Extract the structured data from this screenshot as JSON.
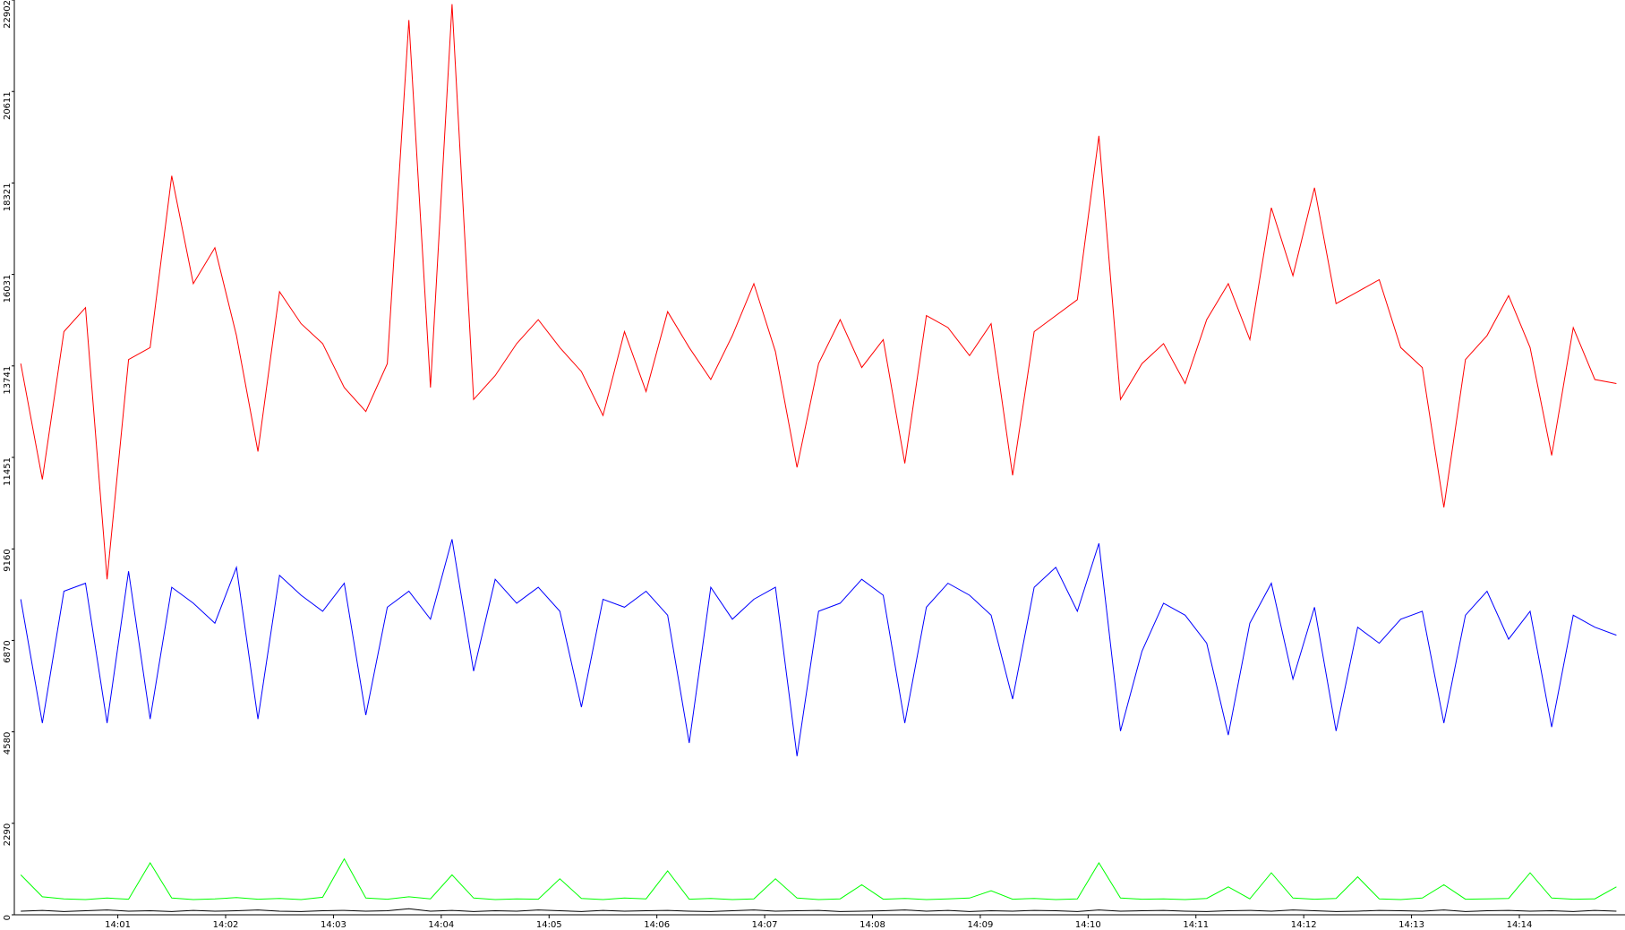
{
  "chart_data": {
    "type": "line",
    "x": [
      0.1,
      0.3,
      0.5,
      0.7,
      0.9,
      1.1,
      1.3,
      1.5,
      1.7,
      1.9,
      2.1,
      2.3,
      2.5,
      2.7,
      2.9,
      3.1,
      3.3,
      3.5,
      3.7,
      3.9,
      4.1,
      4.3,
      4.5,
      4.7,
      4.9,
      5.1,
      5.3,
      5.5,
      5.7,
      5.9,
      6.1,
      6.3,
      6.5,
      6.7,
      6.9,
      7.1,
      7.3,
      7.5,
      7.7,
      7.9,
      8.1,
      8.3,
      8.5,
      8.7,
      8.9,
      9.1,
      9.3,
      9.5,
      9.7,
      9.9,
      10.1,
      10.3,
      10.5,
      10.7,
      10.9,
      11.1,
      11.3,
      11.5,
      11.7,
      11.9,
      12.1,
      12.3,
      12.5,
      12.7,
      12.9,
      13.1,
      13.3,
      13.5,
      13.7,
      13.9,
      14.1,
      14.3,
      14.5,
      14.7,
      14.9
    ],
    "series": [
      {
        "color": "#ff0000",
        "values": [
          13800,
          10900,
          14600,
          15200,
          8400,
          13900,
          14200,
          18500,
          15800,
          16700,
          14500,
          11600,
          15600,
          14800,
          14300,
          13200,
          12600,
          13800,
          22400,
          13200,
          22800,
          12900,
          13500,
          14300,
          14900,
          14200,
          13600,
          12500,
          14600,
          13100,
          15100,
          14200,
          13400,
          14500,
          15800,
          14100,
          11200,
          13800,
          14900,
          13700,
          14400,
          11300,
          15000,
          14700,
          14000,
          14800,
          11000,
          14600,
          15000,
          15400,
          19500,
          12900,
          13800,
          14300,
          13300,
          14900,
          15800,
          14400,
          17700,
          16000,
          18200,
          15300,
          15600,
          15900,
          14200,
          13700,
          10200,
          13900,
          14500,
          15500,
          14200,
          11500,
          14700,
          13400,
          13300
        ]
      },
      {
        "color": "#0000ff",
        "values": [
          7900,
          4800,
          8100,
          8300,
          4800,
          8600,
          4900,
          8200,
          7800,
          7300,
          8700,
          4900,
          8500,
          8000,
          7600,
          8300,
          5000,
          7700,
          8100,
          7400,
          9400,
          6100,
          8400,
          7800,
          8200,
          7600,
          5200,
          7900,
          7700,
          8100,
          7500,
          4300,
          8200,
          7400,
          7900,
          8200,
          3970,
          7600,
          7800,
          8400,
          8000,
          4800,
          7700,
          8300,
          8000,
          7500,
          5400,
          8200,
          8700,
          7600,
          9300,
          4600,
          6600,
          7800,
          7500,
          6800,
          4500,
          7300,
          8300,
          5900,
          7700,
          4600,
          7200,
          6800,
          7400,
          7600,
          4800,
          7500,
          8100,
          6900,
          7600,
          4700,
          7500,
          7200,
          7000
        ]
      },
      {
        "color": "#00ff00",
        "values": [
          1000,
          450,
          400,
          380,
          420,
          390,
          1300,
          420,
          380,
          400,
          430,
          390,
          410,
          380,
          440,
          1400,
          420,
          390,
          450,
          400,
          1000,
          420,
          380,
          400,
          390,
          900,
          410,
          380,
          420,
          400,
          1100,
          390,
          410,
          380,
          400,
          900,
          420,
          380,
          400,
          750,
          390,
          410,
          380,
          400,
          420,
          600,
          390,
          410,
          380,
          400,
          1300,
          420,
          390,
          400,
          380,
          410,
          700,
          400,
          1050,
          420,
          390,
          410,
          950,
          400,
          380,
          420,
          750,
          390,
          400,
          410,
          1050,
          420,
          390,
          400,
          700
        ]
      },
      {
        "color": "#000000",
        "values": [
          90,
          110,
          80,
          100,
          120,
          90,
          100,
          80,
          110,
          90,
          100,
          120,
          90,
          80,
          100,
          110,
          90,
          100,
          150,
          90,
          110,
          80,
          100,
          90,
          120,
          100,
          80,
          110,
          90,
          100,
          110,
          90,
          80,
          100,
          120,
          90,
          100,
          110,
          80,
          90,
          100,
          120,
          90,
          110,
          80,
          100,
          90,
          110,
          100,
          80,
          120,
          90,
          100,
          110,
          90,
          80,
          100,
          110,
          90,
          120,
          100,
          80,
          90,
          110,
          100,
          90,
          120,
          80,
          100,
          110,
          90,
          100,
          80,
          110,
          90
        ]
      }
    ],
    "xlim": [
      0.04,
      14.98
    ],
    "xticks": [
      {
        "value": 1,
        "label": "14:01"
      },
      {
        "value": 2,
        "label": "14:02"
      },
      {
        "value": 3,
        "label": "14:03"
      },
      {
        "value": 4,
        "label": "14:04"
      },
      {
        "value": 5,
        "label": "14:05"
      },
      {
        "value": 6,
        "label": "14:06"
      },
      {
        "value": 7,
        "label": "14:07"
      },
      {
        "value": 8,
        "label": "14:08"
      },
      {
        "value": 9,
        "label": "14:09"
      },
      {
        "value": 10,
        "label": "14:10"
      },
      {
        "value": 11,
        "label": "14:11"
      },
      {
        "value": 12,
        "label": "14:12"
      },
      {
        "value": 13,
        "label": "14:13"
      },
      {
        "value": 14,
        "label": "14:14"
      }
    ],
    "ylim": [
      0,
      22902
    ],
    "yticks": [
      0,
      2290,
      4580,
      6870,
      9160,
      11451,
      13741,
      16031,
      18321,
      20611,
      22902
    ],
    "grid": false
  }
}
